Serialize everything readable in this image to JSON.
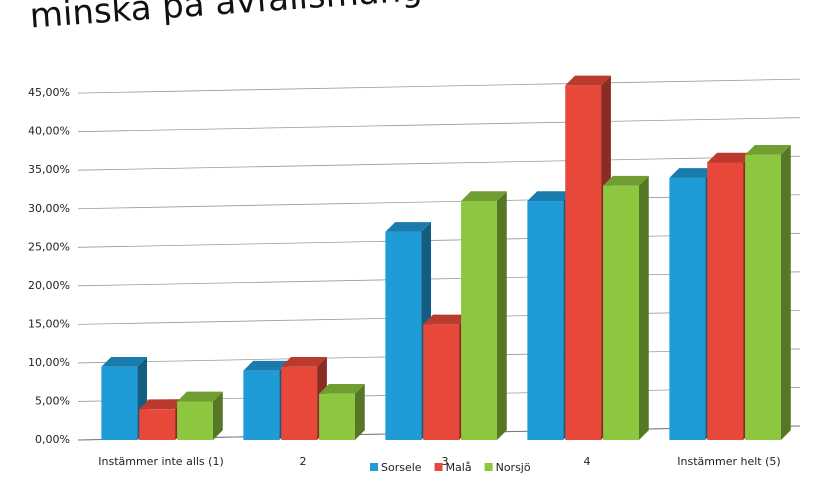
{
  "chart_data": {
    "type": "bar3d",
    "title": "minska på avfallsmängden",
    "categories": [
      "Instämmer inte alls (1)",
      "2",
      "3",
      "4",
      "Instämmer helt (5)"
    ],
    "series": [
      {
        "name": "Sorsele",
        "color": "#1f9bd8",
        "values": [
          9.5,
          9,
          27,
          31,
          34
        ]
      },
      {
        "name": "Malå",
        "color": "#e8483a",
        "values": [
          4,
          9.5,
          15,
          46,
          36
        ]
      },
      {
        "name": "Norsjö",
        "color": "#8dc63f",
        "values": [
          5,
          6,
          31,
          33,
          37
        ]
      }
    ],
    "ylim": [
      0,
      48
    ],
    "yticks": [
      {
        "value": 0,
        "label": "0,00%"
      },
      {
        "value": 5,
        "label": "5,00%"
      },
      {
        "value": 10,
        "label": "10,00%"
      },
      {
        "value": 15,
        "label": "15,00%"
      },
      {
        "value": 20,
        "label": "20,00%"
      },
      {
        "value": 25,
        "label": "25,00%"
      },
      {
        "value": 30,
        "label": "30,00%"
      },
      {
        "value": 35,
        "label": "35,00%"
      },
      {
        "value": 40,
        "label": "40,00%"
      },
      {
        "value": 45,
        "label": "45,00%"
      }
    ],
    "grid": true,
    "legend": "bottom"
  }
}
